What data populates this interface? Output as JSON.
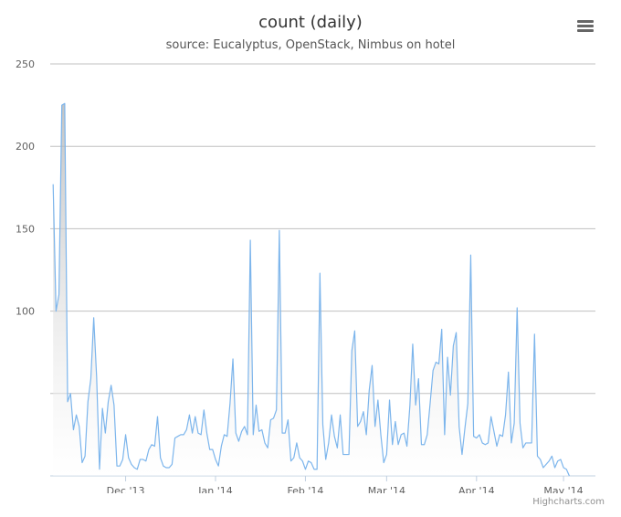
{
  "chart_data": {
    "type": "area",
    "title": "count (daily)",
    "subtitle": "source: Eucalyptus, OpenStack, Nimbus on hotel",
    "xlabel": "",
    "ylabel": "",
    "ylim": [
      0,
      250
    ],
    "xlim": [
      "2013-11-05",
      "2014-05-12"
    ],
    "grid": true,
    "legend": "none",
    "y_ticks": [
      "250",
      "200",
      "150",
      "100",
      ""
    ],
    "x_ticks": [
      {
        "label": "Dec '13",
        "date": "2013-12-01"
      },
      {
        "label": "Jan '14",
        "date": "2014-01-01"
      },
      {
        "label": "Feb '14",
        "date": "2014-02-01"
      },
      {
        "label": "Mar '14",
        "date": "2014-03-01"
      },
      {
        "label": "Apr '14",
        "date": "2014-04-01"
      },
      {
        "label": "May '14",
        "date": "2014-05-01"
      }
    ],
    "series": [
      {
        "start_date": "2013-11-06",
        "interval": "daily",
        "color": "#7cb5ec",
        "values": [
          177,
          100,
          110,
          225,
          226,
          45,
          50,
          28,
          37,
          30,
          8,
          12,
          45,
          59,
          96,
          60,
          4,
          41,
          26,
          45,
          55,
          43,
          6,
          6,
          10,
          25,
          11,
          7,
          5,
          4,
          10,
          10,
          9,
          16,
          19,
          18,
          36,
          11,
          6,
          5,
          5,
          7,
          23,
          24,
          25,
          25,
          28,
          37,
          26,
          36,
          26,
          25,
          40,
          26,
          16,
          16,
          10,
          6,
          18,
          25,
          24,
          44,
          71,
          26,
          21,
          27,
          30,
          25,
          143,
          25,
          43,
          27,
          28,
          20,
          17,
          34,
          35,
          40,
          149,
          26,
          26,
          34,
          9,
          11,
          20,
          11,
          9,
          4,
          9,
          8,
          4,
          4,
          123,
          31,
          10,
          20,
          37,
          24,
          17,
          37,
          13,
          13,
          13,
          76,
          88,
          30,
          33,
          39,
          25,
          52,
          67,
          30,
          46,
          25,
          8,
          13,
          46,
          19,
          33,
          19,
          25,
          26,
          18,
          42,
          80,
          43,
          59,
          19,
          19,
          25,
          44,
          64,
          69,
          68,
          89,
          25,
          72,
          49,
          79,
          87,
          30,
          13,
          29,
          44,
          134,
          24,
          23,
          25,
          20,
          19,
          20,
          36,
          27,
          18,
          25,
          24,
          37,
          63,
          20,
          32,
          102,
          32,
          17,
          20,
          20,
          20,
          86,
          12,
          10,
          5,
          7,
          9,
          12,
          5,
          9,
          10,
          5,
          4,
          0
        ]
      }
    ]
  },
  "credits": "Highcharts.com",
  "menu_icon": "hamburger-menu-icon"
}
